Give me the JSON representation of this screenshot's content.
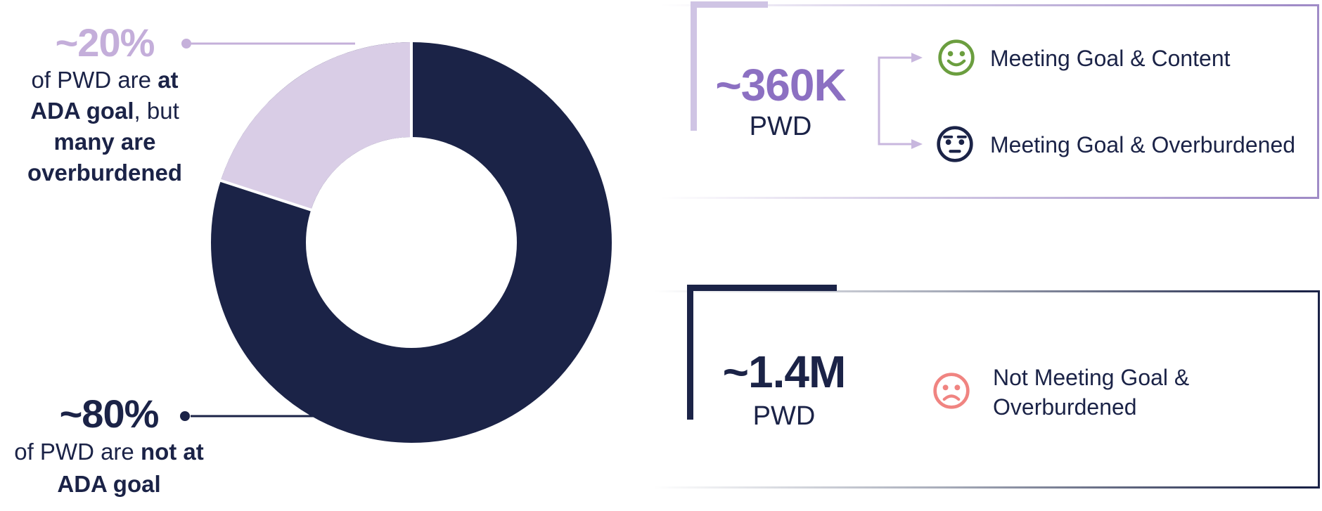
{
  "chart_data": {
    "type": "pie",
    "subtype": "donut",
    "categories": [
      "At ADA goal",
      "Not at ADA goal"
    ],
    "values": [
      20,
      80
    ],
    "value_labels": [
      "~20%",
      "~80%"
    ],
    "colors": [
      "#D9CDE6",
      "#1B2347"
    ],
    "start_angle_deg_of_small_slice": 288,
    "legend": "none",
    "title": ""
  },
  "callout_at_goal": {
    "value": "~20%",
    "seg1": "of PWD are ",
    "seg2": "at ADA goal",
    "seg3": ", but ",
    "seg4": "many are overburdened"
  },
  "callout_not_at_goal": {
    "value": "~80%",
    "seg1": "of PWD are ",
    "seg2": "not at ADA goal"
  },
  "box_meeting_goal": {
    "value": "~360K",
    "unit": "PWD",
    "rows": [
      {
        "icon": "smiley-happy-icon",
        "label": "Meeting Goal & Content"
      },
      {
        "icon": "smiley-neutral-icon",
        "label": "Meeting Goal & Overburdened"
      }
    ]
  },
  "box_not_meeting_goal": {
    "value": "~1.4M",
    "unit": "PWD",
    "rows": [
      {
        "icon": "smiley-sad-icon",
        "label": "Not Meeting Goal & Overburdened"
      }
    ]
  },
  "colors": {
    "navy": "#1B2347",
    "lavender_slice": "#D9CDE6",
    "lavender_accent": "#C5B0DA",
    "purple": "#8C70C2",
    "bracket_lavender": "#CFC4E4",
    "green": "#6B9E3F",
    "salmon": "#F08481"
  }
}
